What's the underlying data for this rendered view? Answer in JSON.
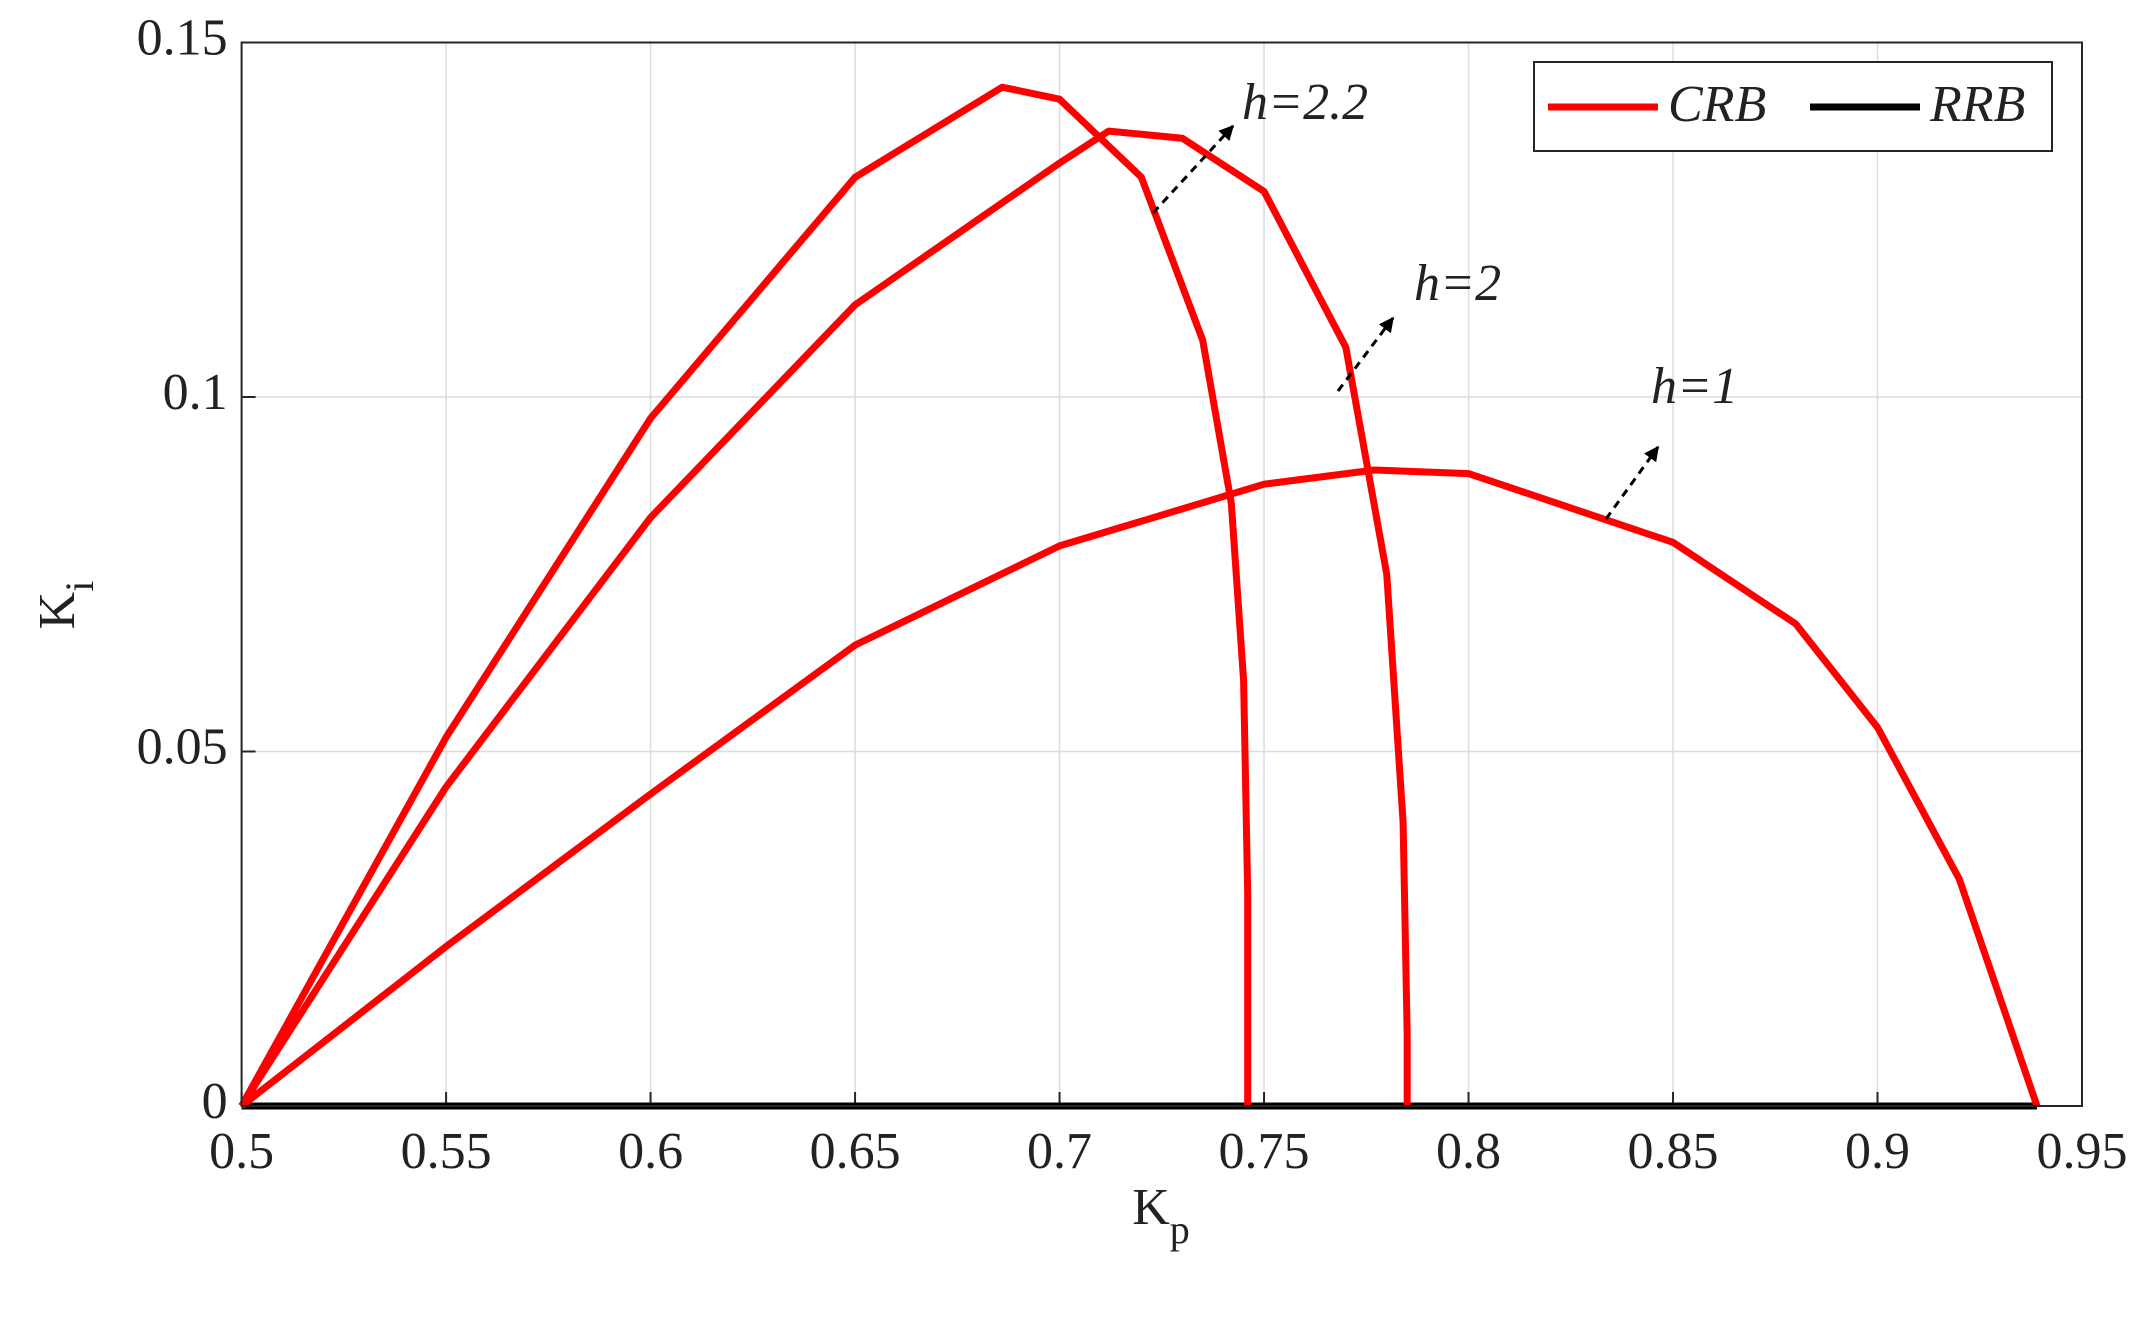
{
  "chart_data": {
    "type": "line",
    "xlabel": "K",
    "xlabel_sub": "p",
    "ylabel": "K",
    "ylabel_sub": "i",
    "xlim": [
      0.5,
      0.95
    ],
    "xticks": [
      0.5,
      0.55,
      0.6,
      0.65,
      0.7,
      0.75,
      0.8,
      0.85,
      0.9,
      0.95
    ],
    "ylim": [
      0,
      0.15
    ],
    "yticks": [
      0,
      0.05,
      0.1,
      0.15
    ],
    "grid": true,
    "legend": [
      {
        "name": "CRB",
        "color": "#ff0000"
      },
      {
        "name": "RRB",
        "color": "#000000"
      }
    ],
    "series": [
      {
        "label": "h=1",
        "color": "#ff0000",
        "x": [
          0.5,
          0.55,
          0.6,
          0.65,
          0.7,
          0.75,
          0.777,
          0.8,
          0.85,
          0.88,
          0.9,
          0.92,
          0.939
        ],
        "values": [
          0,
          0.0225,
          0.044,
          0.065,
          0.079,
          0.0877,
          0.0897,
          0.0892,
          0.0795,
          0.068,
          0.0534,
          0.032,
          0
        ]
      },
      {
        "label": "h=2",
        "color": "#ff0000",
        "x": [
          0.5,
          0.55,
          0.6,
          0.65,
          0.7,
          0.712,
          0.73,
          0.75,
          0.77,
          0.78,
          0.784,
          0.785,
          0.785
        ],
        "values": [
          0,
          0.045,
          0.083,
          0.113,
          0.133,
          0.1375,
          0.1365,
          0.129,
          0.107,
          0.075,
          0.04,
          0.01,
          0
        ]
      },
      {
        "label": "h=2.2",
        "color": "#ff0000",
        "x": [
          0.5,
          0.55,
          0.6,
          0.65,
          0.686,
          0.7,
          0.72,
          0.735,
          0.742,
          0.745,
          0.746,
          0.746
        ],
        "values": [
          0,
          0.052,
          0.097,
          0.131,
          0.1437,
          0.142,
          0.131,
          0.108,
          0.085,
          0.06,
          0.03,
          0
        ]
      }
    ],
    "rrb": {
      "color": "#000000",
      "x": [
        0.5,
        0.939
      ],
      "values": [
        0,
        0
      ]
    }
  }
}
